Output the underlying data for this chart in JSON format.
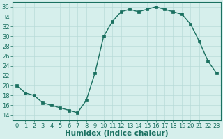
{
  "x": [
    0,
    1,
    2,
    3,
    4,
    5,
    6,
    7,
    8,
    9,
    10,
    11,
    12,
    13,
    14,
    15,
    16,
    17,
    18,
    19,
    20,
    21,
    22,
    23
  ],
  "y": [
    20,
    18.5,
    18,
    16.5,
    16,
    15.5,
    15,
    14.5,
    17,
    22.5,
    30,
    33,
    35,
    35.5,
    35,
    35.5,
    36,
    35.5,
    35,
    34.5,
    32.5,
    29,
    25,
    22.5
  ],
  "line_color": "#1a7060",
  "marker": "s",
  "marker_size": 2.5,
  "bg_color": "#d6efec",
  "grid_color": "#b8dbd8",
  "xlabel": "Humidex (Indice chaleur)",
  "ylim": [
    13,
    37
  ],
  "xlim": [
    -0.5,
    23.5
  ],
  "yticks": [
    14,
    16,
    18,
    20,
    22,
    24,
    26,
    28,
    30,
    32,
    34,
    36
  ],
  "xticks": [
    0,
    1,
    2,
    3,
    4,
    5,
    6,
    7,
    8,
    9,
    10,
    11,
    12,
    13,
    14,
    15,
    16,
    17,
    18,
    19,
    20,
    21,
    22,
    23
  ],
  "tick_label_fontsize": 6,
  "xlabel_fontsize": 7.5,
  "linewidth": 1.0
}
